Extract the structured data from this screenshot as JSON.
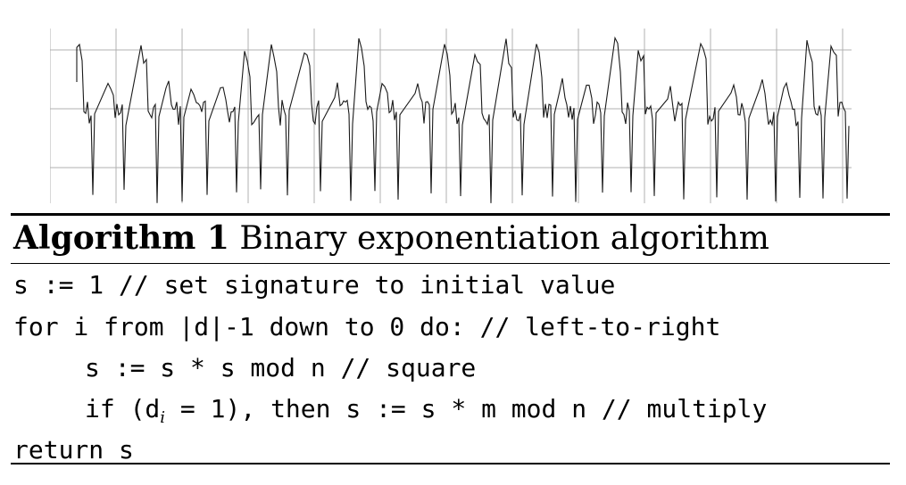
{
  "figure": {
    "trace_description_name": "power-trace",
    "trace_color": "#1a1a1a",
    "grid_color": "#b0b0b0"
  },
  "algorithm": {
    "label": "Algorithm 1",
    "title": "Binary exponentiation algorithm",
    "lines": {
      "l1": "s := 1 // set signature to initial value",
      "l2": "for i from |d|-1 down to 0 do: // left-to-right",
      "l3": "s := s * s mod n // square",
      "l4_pre": "if (d",
      "l4_sub": "i",
      "l4_post": " = 1), then s := s * m mod n // multiply",
      "l5": "return s"
    }
  }
}
